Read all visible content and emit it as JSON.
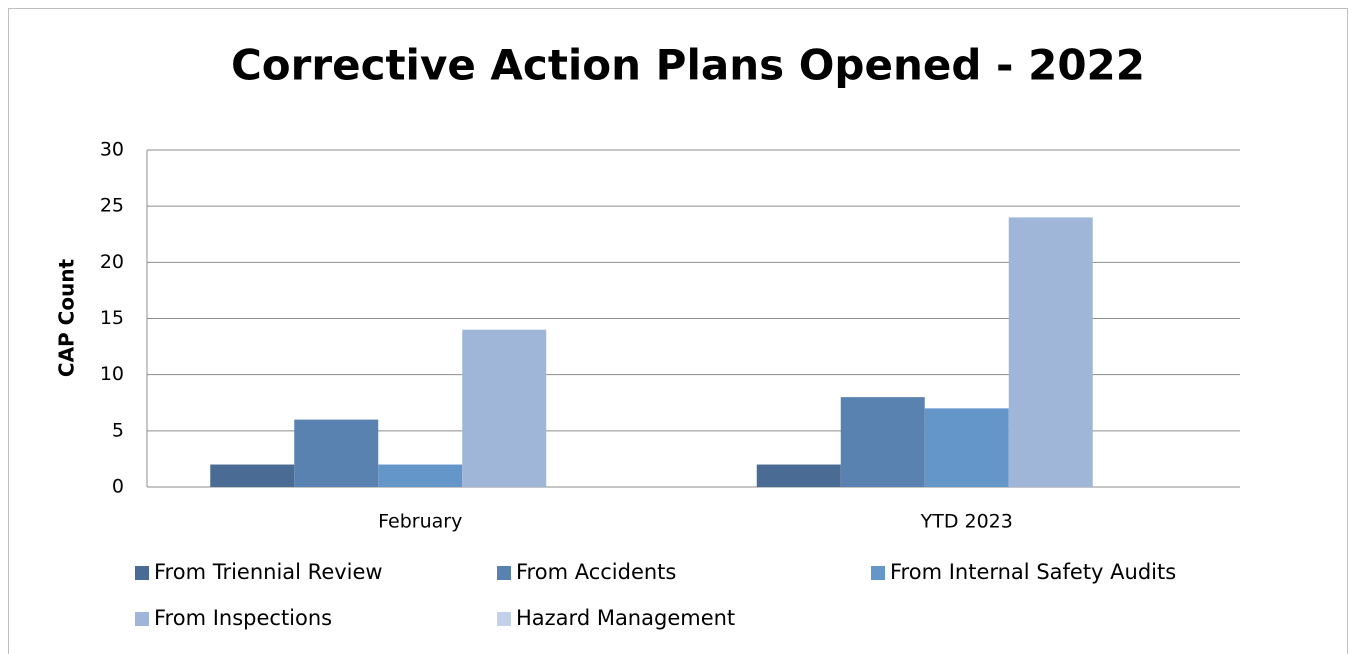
{
  "chart_data": {
    "type": "bar",
    "title": "Corrective Action Plans Opened - 2022",
    "y_label": "CAP Count",
    "categories": [
      "February",
      "YTD 2023"
    ],
    "series": [
      {
        "name": "From Triennial Review",
        "color": "#4a6c94",
        "values": [
          2,
          2
        ]
      },
      {
        "name": "From Accidents",
        "color": "#5a82b0",
        "values": [
          6,
          8
        ]
      },
      {
        "name": "From Internal Safety Audits",
        "color": "#6596c9",
        "values": [
          2,
          7
        ]
      },
      {
        "name": "From Inspections",
        "color": "#9fb6d8",
        "values": [
          14,
          24
        ]
      },
      {
        "name": "Hazard Management",
        "color": "#c3d1e8",
        "values": [
          0,
          0
        ]
      }
    ],
    "ylim": [
      0,
      30
    ],
    "yticks": [
      0,
      5,
      10,
      15,
      20,
      25,
      30
    ],
    "grid": true,
    "legend": "bottom"
  }
}
